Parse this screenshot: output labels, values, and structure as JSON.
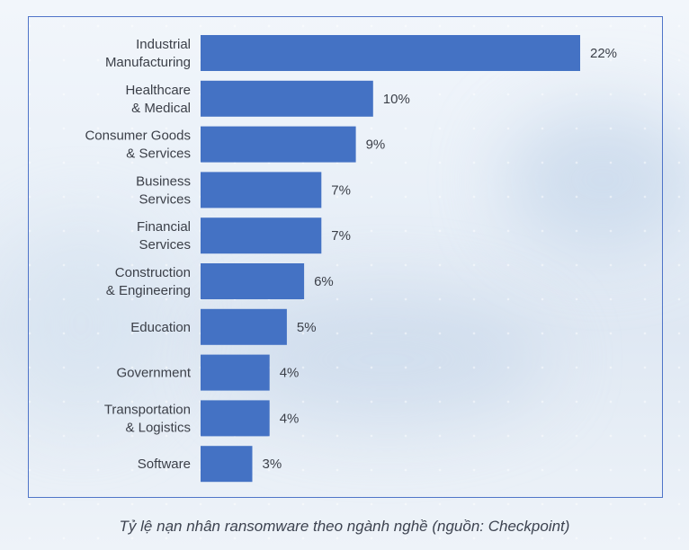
{
  "chart_data": {
    "type": "bar",
    "orientation": "horizontal",
    "categories": [
      [
        "Industrial",
        "Manufacturing"
      ],
      [
        "Healthcare",
        "& Medical"
      ],
      [
        "Consumer Goods",
        "& Services"
      ],
      [
        "Business",
        "Services"
      ],
      [
        "Financial",
        "Services"
      ],
      [
        "Construction",
        "& Engineering"
      ],
      [
        "Education"
      ],
      [
        "Government"
      ],
      [
        "Transportation",
        "& Logistics"
      ],
      [
        "Software"
      ]
    ],
    "values": [
      22,
      10,
      9,
      7,
      7,
      6,
      5,
      4,
      4,
      3
    ],
    "value_labels": [
      "22%",
      "10%",
      "9%",
      "7%",
      "7%",
      "6%",
      "5%",
      "4%",
      "4%",
      "3%"
    ],
    "unit": "%",
    "xlim": [
      0,
      22
    ],
    "bar_color": "#4472c4",
    "grid": false,
    "legend": "none"
  },
  "caption": "Tỷ lệ nạn nhân ransomware theo ngành nghề (nguồn: Checkpoint)",
  "colors": {
    "bar": "#4472c4",
    "frame": "#4f74c8",
    "text": "#3b3f48"
  }
}
